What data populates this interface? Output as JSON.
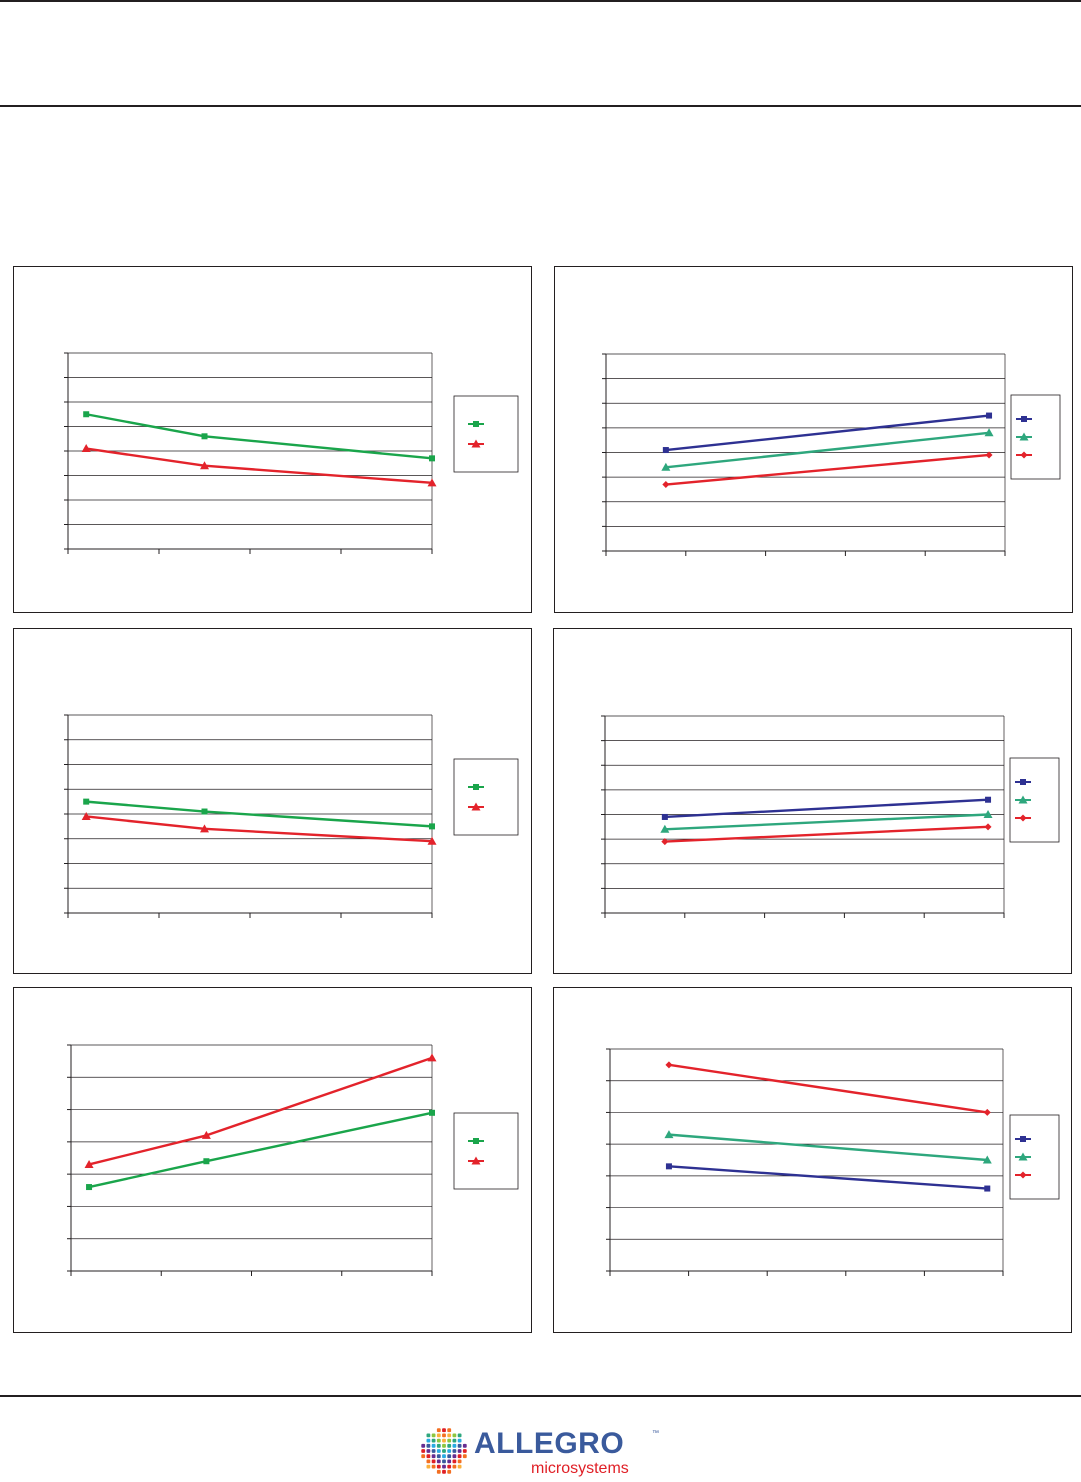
{
  "brand": {
    "name": "ALLEGRO",
    "tm": "™",
    "tagline": "microsystems"
  },
  "colors": {
    "frame": "#231f20",
    "grid": "#231f20",
    "green": "#1aa54b",
    "red": "#e3232b",
    "navy": "#2e3192",
    "teal": "#2ea77d",
    "logo_blue": "#3a5a9c",
    "logo_red": "#e01f26"
  },
  "chart_data": [
    {
      "type": "line",
      "ylim": [
        0,
        8
      ],
      "xlim": [
        0,
        4
      ],
      "grid": true,
      "legend": "right",
      "series": [
        {
          "color": "green",
          "marker": "square",
          "points": [
            [
              0.2,
              5.5
            ],
            [
              1.5,
              4.6
            ],
            [
              4.0,
              3.7
            ]
          ]
        },
        {
          "color": "red",
          "marker": "triangle",
          "points": [
            [
              0.2,
              4.1
            ],
            [
              1.5,
              3.4
            ],
            [
              4.0,
              2.7
            ]
          ]
        }
      ]
    },
    {
      "type": "line",
      "ylim": [
        0,
        8
      ],
      "xlim": [
        0,
        5
      ],
      "grid": true,
      "legend": "right",
      "series": [
        {
          "color": "navy",
          "marker": "square",
          "points": [
            [
              0.75,
              4.1
            ],
            [
              4.8,
              5.5
            ]
          ]
        },
        {
          "color": "teal",
          "marker": "triangle",
          "points": [
            [
              0.75,
              3.4
            ],
            [
              4.8,
              4.8
            ]
          ]
        },
        {
          "color": "red",
          "marker": "diamond",
          "points": [
            [
              0.75,
              2.7
            ],
            [
              4.8,
              3.9
            ]
          ]
        }
      ]
    },
    {
      "type": "line",
      "ylim": [
        0,
        8
      ],
      "xlim": [
        0,
        4
      ],
      "grid": true,
      "legend": "right",
      "series": [
        {
          "color": "green",
          "marker": "square",
          "points": [
            [
              0.2,
              4.5
            ],
            [
              1.5,
              4.1
            ],
            [
              4.0,
              3.5
            ]
          ]
        },
        {
          "color": "red",
          "marker": "triangle",
          "points": [
            [
              0.2,
              3.9
            ],
            [
              1.5,
              3.4
            ],
            [
              4.0,
              2.9
            ]
          ]
        }
      ]
    },
    {
      "type": "line",
      "ylim": [
        0,
        8
      ],
      "xlim": [
        0,
        5
      ],
      "grid": true,
      "legend": "right",
      "series": [
        {
          "color": "navy",
          "marker": "square",
          "points": [
            [
              0.75,
              3.9
            ],
            [
              4.8,
              4.6
            ]
          ]
        },
        {
          "color": "teal",
          "marker": "triangle",
          "points": [
            [
              0.75,
              3.4
            ],
            [
              4.8,
              4.0
            ]
          ]
        },
        {
          "color": "red",
          "marker": "diamond",
          "points": [
            [
              0.75,
              2.9
            ],
            [
              4.8,
              3.5
            ]
          ]
        }
      ]
    },
    {
      "type": "line",
      "ylim": [
        0,
        7
      ],
      "xlim": [
        0,
        4
      ],
      "grid": true,
      "legend": "right",
      "series": [
        {
          "color": "green",
          "marker": "square",
          "points": [
            [
              0.2,
              2.6
            ],
            [
              1.5,
              3.4
            ],
            [
              4.0,
              4.9
            ]
          ]
        },
        {
          "color": "red",
          "marker": "triangle",
          "points": [
            [
              0.2,
              3.3
            ],
            [
              1.5,
              4.2
            ],
            [
              4.0,
              6.6
            ]
          ]
        }
      ]
    },
    {
      "type": "line",
      "ylim": [
        0,
        7
      ],
      "xlim": [
        0,
        5
      ],
      "grid": true,
      "legend": "right",
      "series": [
        {
          "color": "navy",
          "marker": "square",
          "points": [
            [
              0.75,
              3.3
            ],
            [
              4.8,
              2.6
            ]
          ]
        },
        {
          "color": "teal",
          "marker": "triangle",
          "points": [
            [
              0.75,
              4.3
            ],
            [
              4.8,
              3.5
            ]
          ]
        },
        {
          "color": "red",
          "marker": "diamond",
          "points": [
            [
              0.75,
              6.5
            ],
            [
              4.8,
              5.0
            ]
          ]
        }
      ]
    }
  ]
}
